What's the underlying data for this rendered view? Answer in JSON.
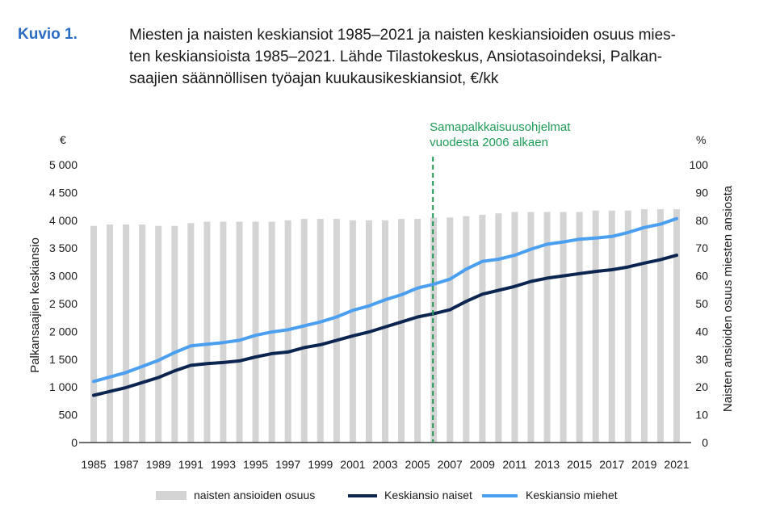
{
  "caption": {
    "label": "Kuvio 1.",
    "lines": [
      "Miesten ja naisten keskiansiot 1985–2021 ja naisten keskiansioiden osuus mies-",
      "ten keskiansioista 1985–2021. Lähde Tilastokeskus, Ansiotasoindeksi, Palkan-",
      "saajien säännöllisen työajan kuukausikeskiansiot, €/kk"
    ]
  },
  "chart_data": {
    "type": "bar+line",
    "years": [
      1985,
      1986,
      1987,
      1988,
      1989,
      1990,
      1991,
      1992,
      1993,
      1994,
      1995,
      1996,
      1997,
      1998,
      1999,
      2000,
      2001,
      2002,
      2003,
      2004,
      2005,
      2006,
      2007,
      2008,
      2009,
      2010,
      2011,
      2012,
      2013,
      2014,
      2015,
      2016,
      2017,
      2018,
      2019,
      2020,
      2021
    ],
    "x_tick_labels": [
      "1985",
      "1987",
      "1989",
      "1991",
      "1993",
      "1995",
      "1997",
      "1999",
      "2001",
      "2003",
      "2005",
      "2007",
      "2009",
      "2011",
      "2013",
      "2015",
      "2017",
      "2019",
      "2021"
    ],
    "left_axis": {
      "unit": "€",
      "label": "Palkansaajien keskiansio",
      "ylim": [
        0,
        5000
      ],
      "tick_labels": [
        "0",
        "500",
        "1 000",
        "1 500",
        "2 000",
        "2 500",
        "3 000",
        "3 500",
        "4 000",
        "4 500",
        "5 000"
      ]
    },
    "right_axis": {
      "unit": "%",
      "label": "Naisten ansioiden osuus miesten ansiosta",
      "ylim": [
        0,
        100
      ],
      "tick_labels": [
        "0",
        "10",
        "20",
        "30",
        "40",
        "50",
        "60",
        "70",
        "80",
        "90",
        "100"
      ]
    },
    "series": [
      {
        "name": "naisten ansioiden osuus",
        "type": "bar",
        "axis": "right",
        "color": "#d4d4d4",
        "values": [
          78,
          78.5,
          78.5,
          78.5,
          78,
          78,
          79,
          79.5,
          79.5,
          79.5,
          79.5,
          79.5,
          80,
          80.5,
          80.5,
          80.5,
          80,
          80,
          80,
          80.5,
          80.5,
          81,
          81,
          81.5,
          82,
          82.5,
          83,
          83,
          83,
          83,
          83,
          83.5,
          83.5,
          83.5,
          84,
          84,
          84
        ]
      },
      {
        "name": "Keskiansio naiset",
        "type": "line",
        "axis": "left",
        "color": "#0b2550",
        "values": [
          850,
          920,
          990,
          1080,
          1170,
          1290,
          1390,
          1420,
          1440,
          1470,
          1540,
          1600,
          1630,
          1710,
          1760,
          1840,
          1920,
          1990,
          2080,
          2170,
          2260,
          2320,
          2390,
          2540,
          2670,
          2740,
          2810,
          2900,
          2960,
          3000,
          3040,
          3080,
          3110,
          3160,
          3230,
          3290,
          3370
        ]
      },
      {
        "name": "Keskiansio miehet",
        "type": "line",
        "axis": "left",
        "color": "#4a9ff0",
        "values": [
          1100,
          1180,
          1260,
          1370,
          1480,
          1620,
          1740,
          1770,
          1800,
          1840,
          1930,
          1990,
          2030,
          2100,
          2170,
          2260,
          2380,
          2460,
          2570,
          2660,
          2780,
          2850,
          2940,
          3120,
          3260,
          3300,
          3370,
          3480,
          3570,
          3610,
          3660,
          3680,
          3710,
          3780,
          3870,
          3930,
          4030
        ]
      }
    ],
    "annotation": {
      "year": 2006,
      "lines": [
        "Samapalkkaisuusohjelmat",
        "vuodesta 2006 alkaen"
      ],
      "color": "#1e9a56"
    },
    "legend_position": "bottom"
  }
}
